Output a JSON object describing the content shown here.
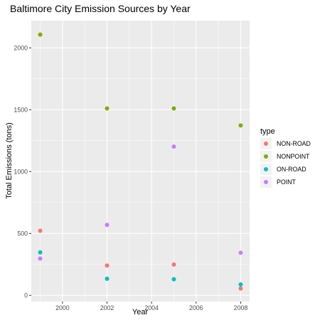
{
  "chart_data": {
    "type": "scatter",
    "title": "Baltimore City Emission Sources by Year",
    "xlabel": "Year",
    "ylabel": "Total Emissions (tons)",
    "xlim": [
      1998.6,
      2008.4
    ],
    "ylim": [
      -50,
      2220
    ],
    "x_ticks": [
      2000,
      2002,
      2004,
      2006,
      2008
    ],
    "y_ticks": [
      0,
      500,
      1000,
      1500,
      2000
    ],
    "grid": true,
    "legend": {
      "title": "type",
      "position": "right"
    },
    "series": [
      {
        "name": "NON-ROAD",
        "color": "#F8766D",
        "x": [
          1999,
          2002,
          2005,
          2008
        ],
        "y": [
          522,
          241,
          249,
          55
        ]
      },
      {
        "name": "NONPOINT",
        "color": "#7CAE00",
        "x": [
          1999,
          2002,
          2005,
          2008
        ],
        "y": [
          2107,
          1510,
          1510,
          1373
        ]
      },
      {
        "name": "ON-ROAD",
        "color": "#00BFC4",
        "x": [
          1999,
          2002,
          2005,
          2008
        ],
        "y": [
          347,
          134,
          130,
          88
        ]
      },
      {
        "name": "POINT",
        "color": "#C77CFF",
        "x": [
          1999,
          2002,
          2005,
          2008
        ],
        "y": [
          297,
          569,
          1202,
          344
        ]
      }
    ]
  }
}
